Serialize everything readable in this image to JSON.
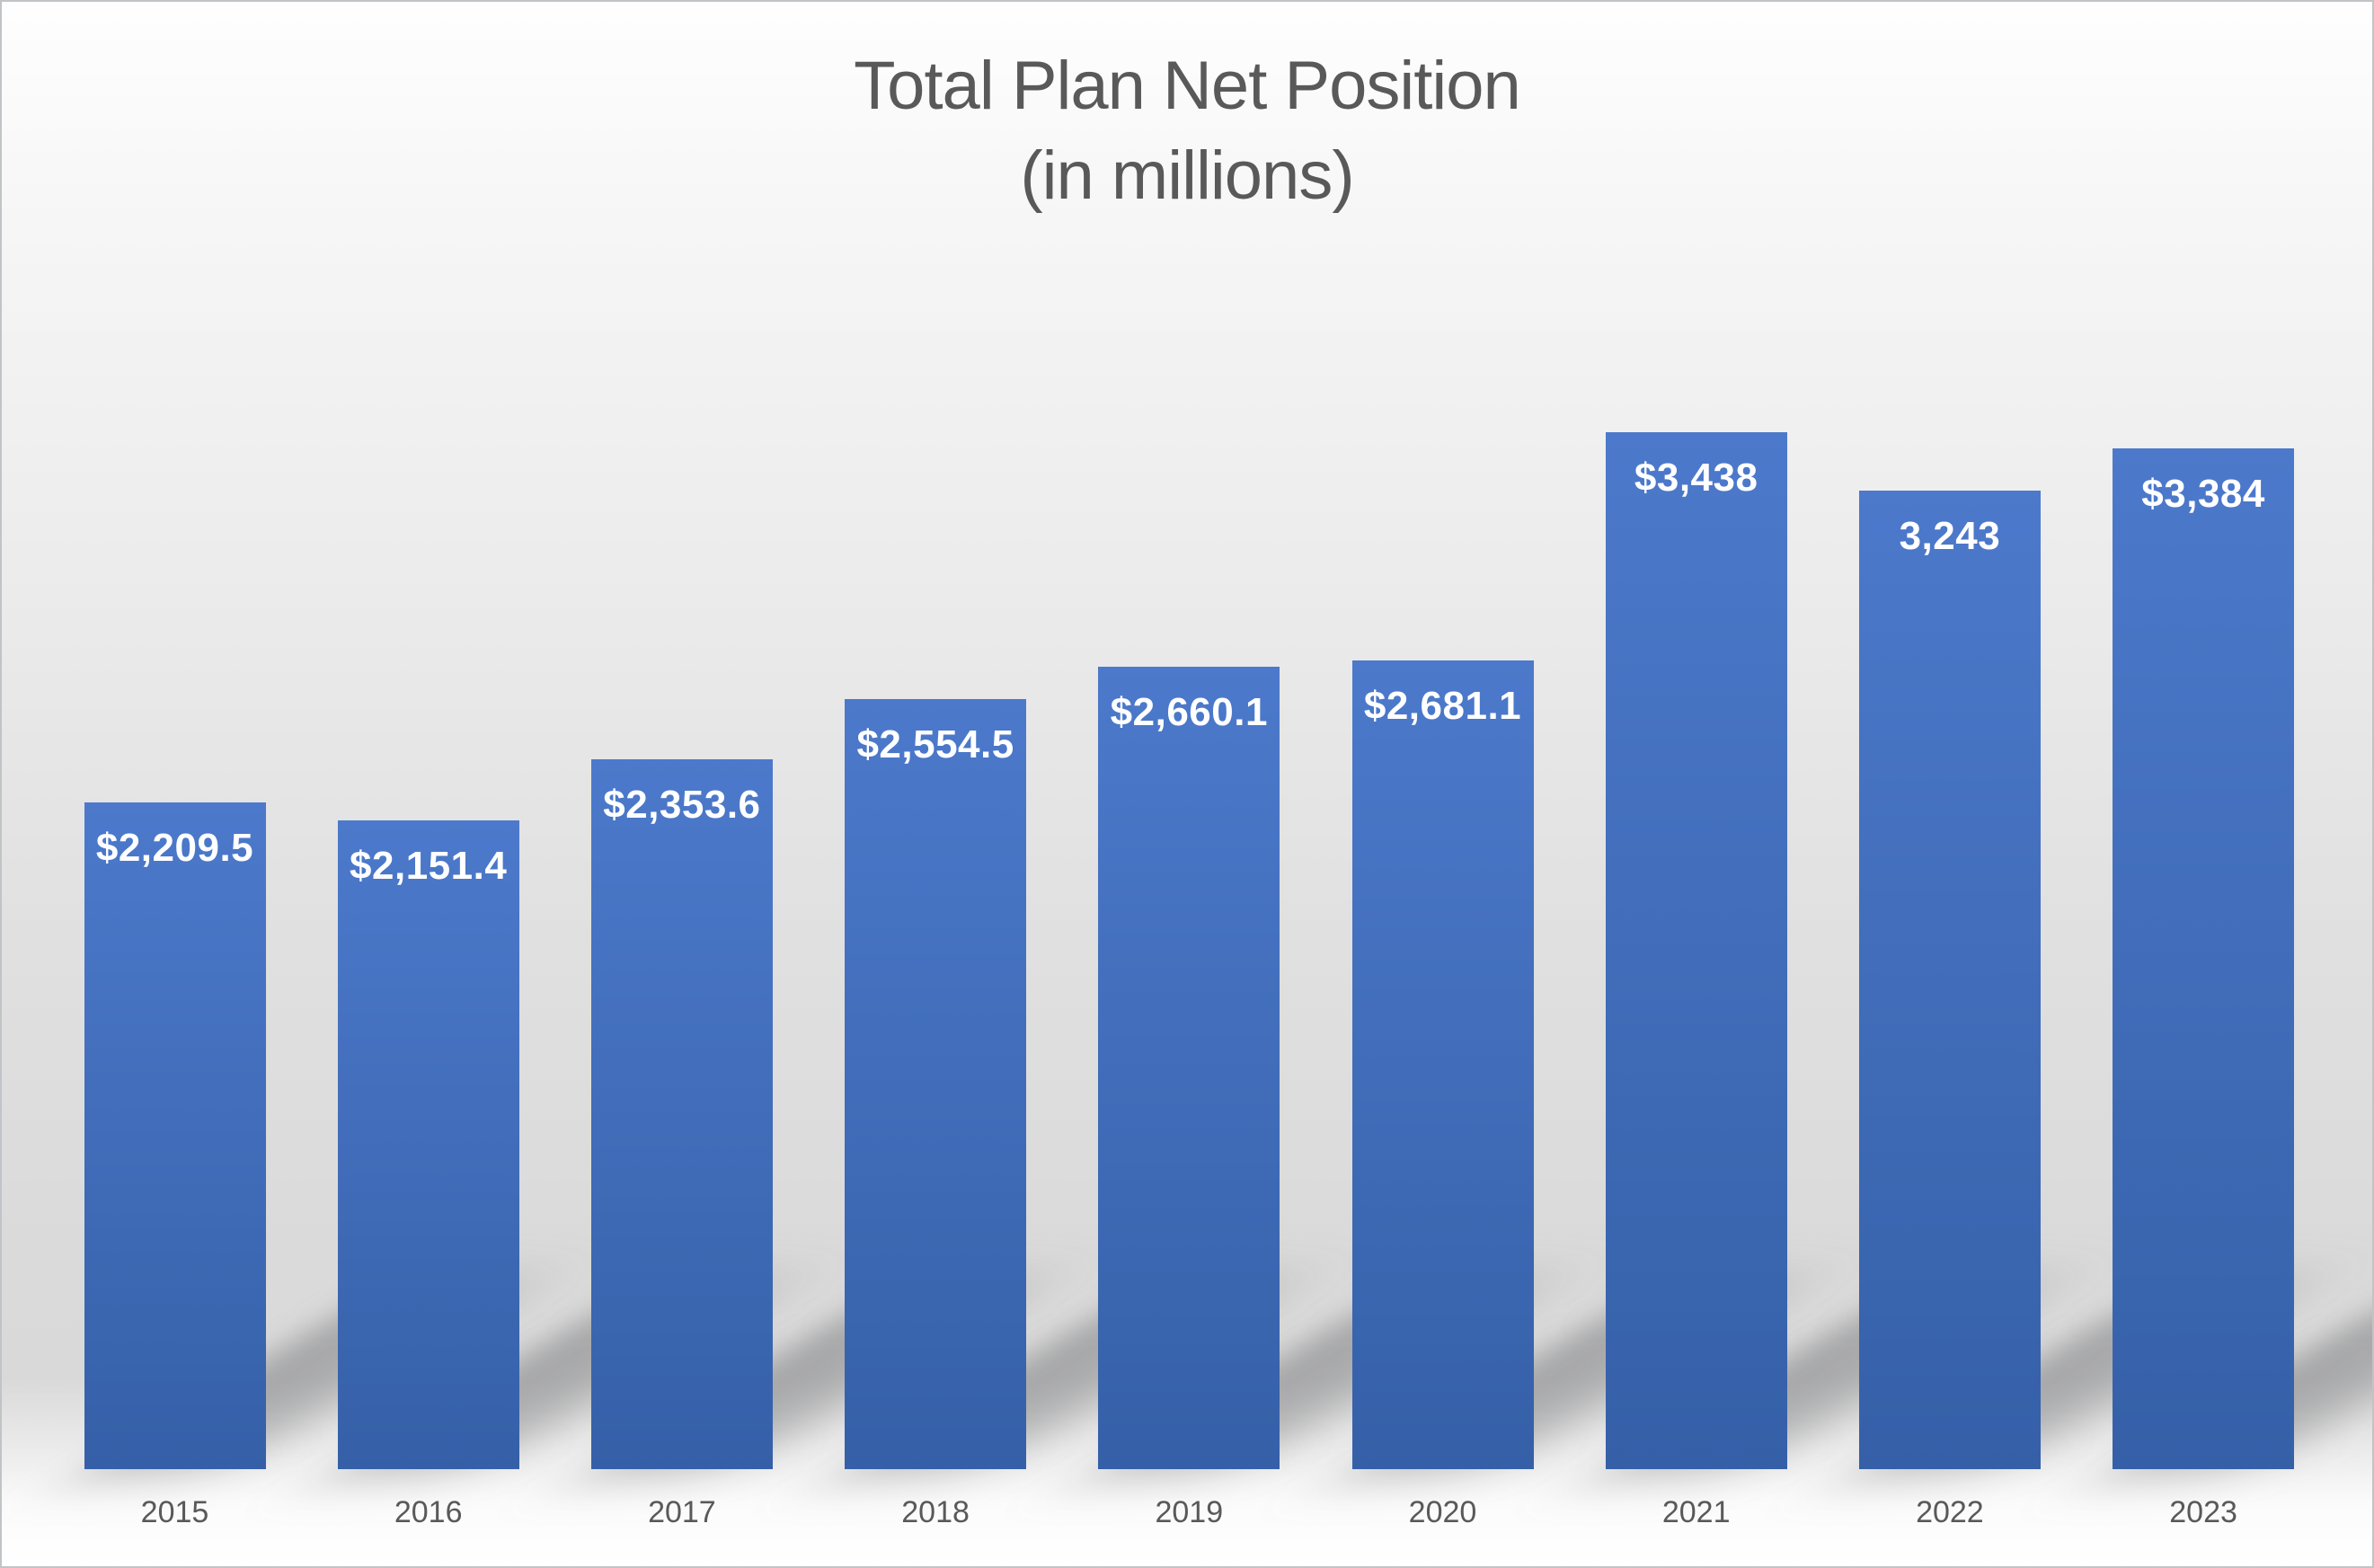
{
  "title": {
    "line1": "Total Plan Net Position",
    "line2": "(in millions)"
  },
  "chart_data": {
    "type": "bar",
    "title": "Total Plan Net Position (in millions)",
    "categories": [
      "2015",
      "2016",
      "2017",
      "2018",
      "2019",
      "2020",
      "2021",
      "2022",
      "2023"
    ],
    "values": [
      2209.5,
      2151.4,
      2353.6,
      2554.5,
      2660.1,
      2681.1,
      3438,
      3243,
      3384
    ],
    "data_labels": [
      "$2,209.5",
      "$2,151.4",
      "$2,353.6",
      "$2,554.5",
      "$2,660.1",
      "$2,681.1",
      "$3,438",
      "3,243",
      "$3,384"
    ],
    "xlabel": "",
    "ylabel": "",
    "ylim": [
      0,
      3600
    ],
    "grid": false,
    "legend": false,
    "axes_shown": false,
    "label_position": "inside-end",
    "colors": {
      "bar_gradient_top": "#4C79CB",
      "bar_gradient_bottom": "#3560A8",
      "data_label": "#FFFFFF",
      "axis_label": "#595959",
      "title": "#595959"
    }
  }
}
